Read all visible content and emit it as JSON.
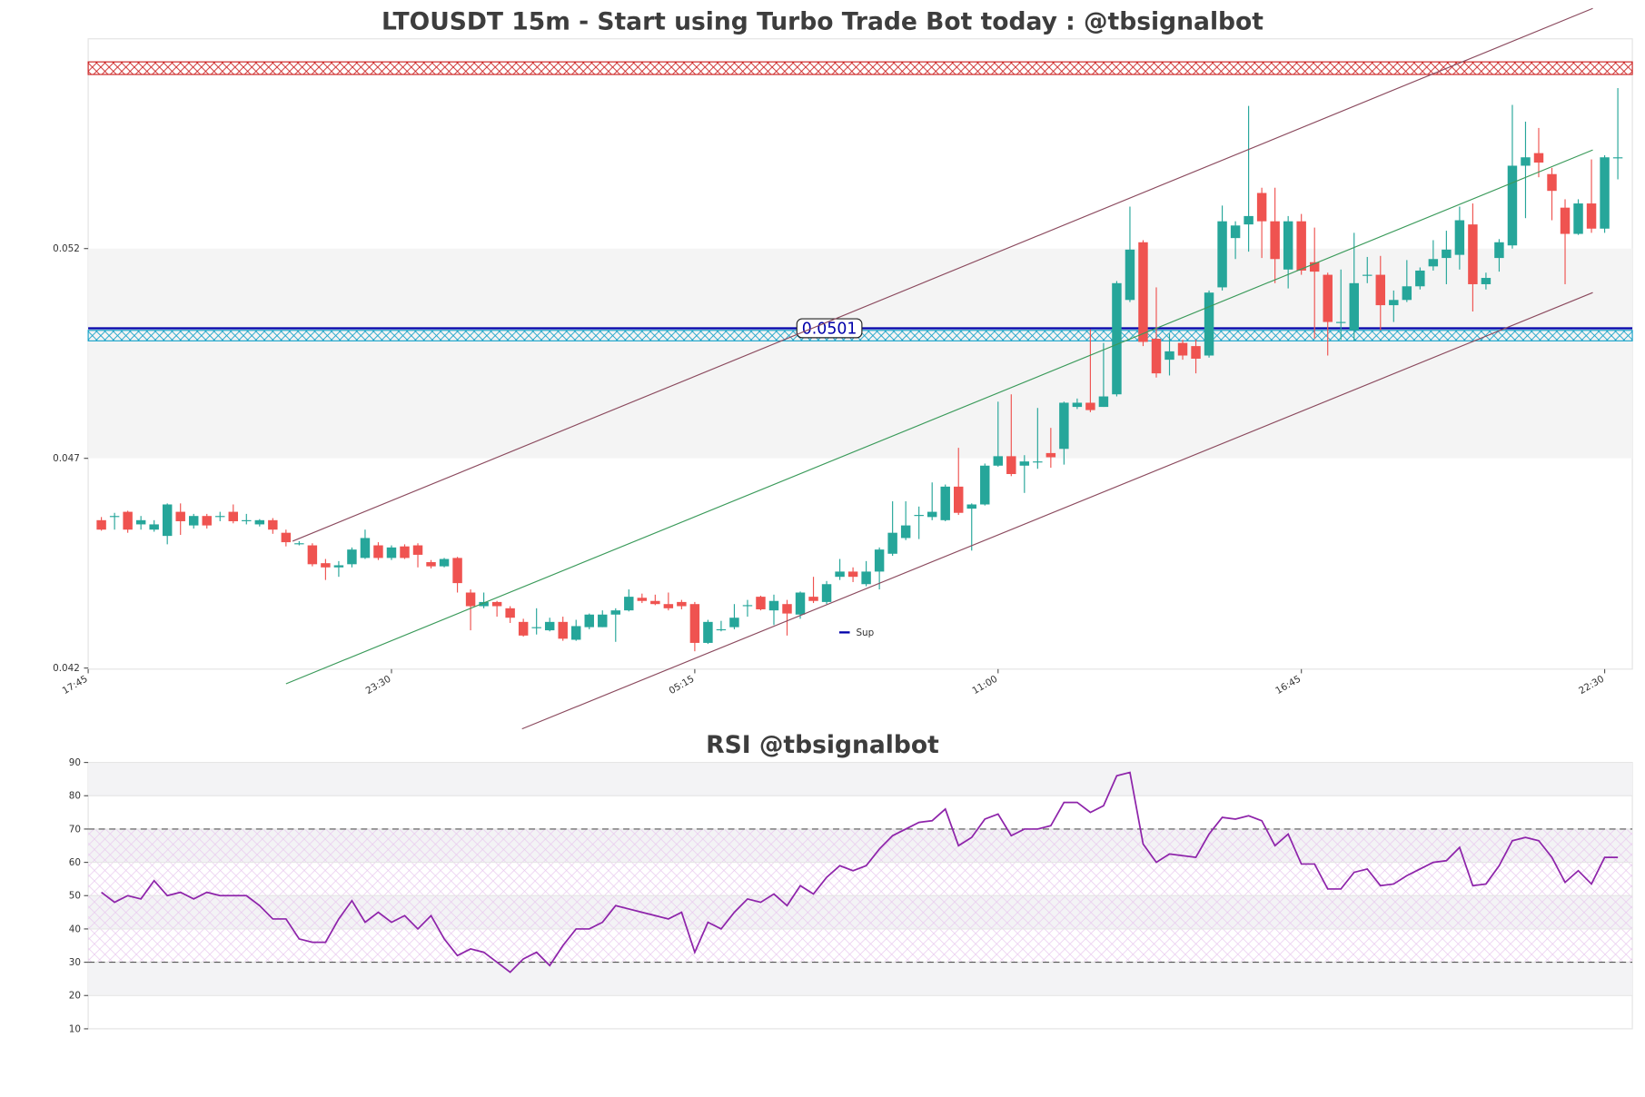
{
  "chart_data": [
    {
      "type": "candlestick",
      "title": "LTOUSDT 15m - Start using Turbo Trade Bot today : @tbsignalbot",
      "x": [
        1,
        2,
        3,
        4,
        5,
        6,
        7,
        8,
        9,
        10,
        11,
        12,
        13,
        14,
        15,
        16,
        17,
        18,
        19,
        20,
        21,
        22,
        23,
        24,
        25,
        26,
        27,
        28,
        29,
        30,
        31,
        32,
        33,
        34,
        35,
        36,
        37,
        38,
        39,
        40,
        41,
        42,
        43,
        44,
        45,
        46,
        47,
        48,
        49,
        50,
        51,
        52,
        53,
        54,
        55,
        56,
        57,
        58,
        59,
        60,
        61,
        62,
        63,
        64,
        65,
        66,
        67,
        68,
        69,
        70,
        71,
        72,
        73,
        74,
        75,
        76,
        77,
        78,
        79,
        80,
        81,
        82,
        83,
        84,
        85,
        86,
        87,
        88,
        89,
        90,
        91,
        92,
        93,
        94,
        95,
        96,
        97,
        98,
        99,
        100,
        101,
        102,
        103,
        104,
        105,
        106,
        107,
        108,
        109,
        110,
        111,
        112,
        113,
        114,
        115,
        116
      ],
      "open": [
        0.045525,
        0.0456,
        0.045725,
        0.045425,
        0.0453,
        0.04515,
        0.045725,
        0.0454,
        0.045625,
        0.045625,
        0.045725,
        0.045525,
        0.045425,
        0.045525,
        0.045225,
        0.044975,
        0.044925,
        0.0445,
        0.0444,
        0.044475,
        0.044625,
        0.044925,
        0.044625,
        0.0449,
        0.044925,
        0.044525,
        0.044425,
        0.044625,
        0.0438,
        0.043475,
        0.043575,
        0.043425,
        0.0431,
        0.042975,
        0.0429,
        0.0431,
        0.042675,
        0.042975,
        0.042975,
        0.043275,
        0.043375,
        0.043675,
        0.0436,
        0.043525,
        0.043575,
        0.043525,
        0.0426,
        0.0429,
        0.042975,
        0.0435,
        0.0437,
        0.043375,
        0.043525,
        0.043275,
        0.0437,
        0.043575,
        0.044175,
        0.0443,
        0.044,
        0.0443,
        0.044725,
        0.0451,
        0.04565,
        0.0456,
        0.045525,
        0.046325,
        0.0458,
        0.0459,
        0.046825,
        0.04705,
        0.046825,
        0.046925,
        0.047125,
        0.047225,
        0.048225,
        0.048325,
        0.048225,
        0.048525,
        0.050775,
        0.05215,
        0.04985,
        0.04935,
        0.04975,
        0.049675,
        0.04945,
        0.051075,
        0.05225,
        0.052575,
        0.053325,
        0.05265,
        0.0515,
        0.05265,
        0.051675,
        0.051375,
        0.05025,
        0.05005,
        0.051375,
        0.051375,
        0.05065,
        0.050775,
        0.0511,
        0.051575,
        0.051775,
        0.05185,
        0.052575,
        0.05115,
        0.051775,
        0.052075,
        0.053975,
        0.054275,
        0.053775,
        0.052975,
        0.05235,
        0.053075,
        0.052475,
        0.054175
      ],
      "high": [
        0.0456,
        0.0457,
        0.04575,
        0.045625,
        0.045525,
        0.045925,
        0.045925,
        0.045675,
        0.045675,
        0.045725,
        0.0459,
        0.045675,
        0.04555,
        0.045575,
        0.0453,
        0.045025,
        0.044975,
        0.0446,
        0.04455,
        0.044875,
        0.0453,
        0.045,
        0.044925,
        0.04495,
        0.044975,
        0.044575,
        0.044625,
        0.04465,
        0.043875,
        0.0438,
        0.0436,
        0.043475,
        0.043175,
        0.043425,
        0.0432,
        0.043225,
        0.04315,
        0.0433,
        0.043375,
        0.043425,
        0.043875,
        0.043775,
        0.04375,
        0.0438,
        0.043625,
        0.043575,
        0.04315,
        0.043125,
        0.043525,
        0.043625,
        0.043725,
        0.04375,
        0.043625,
        0.043825,
        0.044175,
        0.044075,
        0.0446,
        0.0444,
        0.04455,
        0.044875,
        0.045975,
        0.045975,
        0.04585,
        0.046425,
        0.046375,
        0.04725,
        0.045925,
        0.046875,
        0.04835,
        0.048525,
        0.047075,
        0.0482,
        0.047725,
        0.04835,
        0.048425,
        0.050075,
        0.04975,
        0.051225,
        0.053,
        0.0522,
        0.051075,
        0.049975,
        0.049825,
        0.049825,
        0.051,
        0.053025,
        0.05265,
        0.0554,
        0.05345,
        0.05345,
        0.052775,
        0.052825,
        0.0525,
        0.051425,
        0.0515,
        0.052375,
        0.0518,
        0.051825,
        0.051,
        0.051725,
        0.05155,
        0.0522,
        0.052425,
        0.053,
        0.053075,
        0.051425,
        0.052225,
        0.055425,
        0.055025,
        0.054875,
        0.053925,
        0.053175,
        0.053175,
        0.054125,
        0.054225,
        0.055825
      ],
      "low": [
        0.045275,
        0.0453,
        0.045225,
        0.0453,
        0.04525,
        0.04495,
        0.045175,
        0.045325,
        0.045325,
        0.0455,
        0.04545,
        0.045425,
        0.045375,
        0.0452,
        0.0449,
        0.044925,
        0.044425,
        0.0441,
        0.044175,
        0.0444,
        0.0446,
        0.044575,
        0.044575,
        0.0446,
        0.0444,
        0.044375,
        0.0444,
        0.0438,
        0.0429,
        0.043425,
        0.043225,
        0.043075,
        0.04275,
        0.0428,
        0.042875,
        0.04265,
        0.04265,
        0.042925,
        0.042975,
        0.042625,
        0.04335,
        0.04355,
        0.0435,
        0.043375,
        0.0434,
        0.0424,
        0.042575,
        0.042875,
        0.042925,
        0.043225,
        0.043375,
        0.043025,
        0.042775,
        0.043175,
        0.04355,
        0.043525,
        0.0441,
        0.04405,
        0.04395,
        0.043875,
        0.044675,
        0.04505,
        0.045075,
        0.045525,
        0.0455,
        0.04565,
        0.0448,
        0.045875,
        0.0468,
        0.046575,
        0.046175,
        0.04675,
        0.046775,
        0.04685,
        0.048175,
        0.0481,
        0.048225,
        0.048475,
        0.050725,
        0.049675,
        0.048925,
        0.048975,
        0.04935,
        0.049025,
        0.0494,
        0.051,
        0.05175,
        0.051925,
        0.051775,
        0.051175,
        0.05105,
        0.051375,
        0.04985,
        0.04945,
        0.049825,
        0.0498,
        0.051175,
        0.05005,
        0.05025,
        0.050725,
        0.051025,
        0.051475,
        0.05115,
        0.0515,
        0.0505,
        0.051025,
        0.05145,
        0.052,
        0.052725,
        0.0537,
        0.052675,
        0.05115,
        0.052325,
        0.052375,
        0.052375,
        0.05365
      ],
      "close": [
        0.0453,
        0.045625,
        0.0453,
        0.045525,
        0.045425,
        0.0459,
        0.0455,
        0.045625,
        0.0454,
        0.045625,
        0.0455,
        0.045525,
        0.045525,
        0.0453,
        0.045,
        0.044975,
        0.044475,
        0.0444,
        0.04445,
        0.044825,
        0.0451,
        0.044625,
        0.044875,
        0.044625,
        0.0447,
        0.044425,
        0.0446,
        0.044025,
        0.043475,
        0.043575,
        0.043475,
        0.0432,
        0.042775,
        0.042975,
        0.0431,
        0.0427,
        0.043,
        0.043275,
        0.043275,
        0.043375,
        0.0437,
        0.0436,
        0.043525,
        0.043425,
        0.043475,
        0.0426,
        0.0431,
        0.042925,
        0.0432,
        0.0435,
        0.0434,
        0.0436,
        0.0433,
        0.0438,
        0.0436,
        0.044,
        0.0443,
        0.044175,
        0.0443,
        0.044825,
        0.045225,
        0.0454,
        0.04565,
        0.045725,
        0.046325,
        0.0457,
        0.0459,
        0.046825,
        0.04705,
        0.046625,
        0.046925,
        0.046925,
        0.047025,
        0.048325,
        0.048325,
        0.04815,
        0.048475,
        0.051175,
        0.051975,
        0.049775,
        0.049025,
        0.04955,
        0.04945,
        0.049375,
        0.05095,
        0.05265,
        0.05255,
        0.052775,
        0.05265,
        0.05175,
        0.05265,
        0.051475,
        0.05145,
        0.05025,
        0.05025,
        0.051175,
        0.051375,
        0.05065,
        0.050775,
        0.0511,
        0.051475,
        0.05175,
        0.051975,
        0.052675,
        0.05115,
        0.0513,
        0.05215,
        0.053975,
        0.054175,
        0.05405,
        0.053375,
        0.05235,
        0.053075,
        0.052475,
        0.054175,
        0.054175
      ],
      "up_color": "#26a69a",
      "down_color": "#ef5350",
      "xlim": [
        0,
        117.1
      ],
      "xticks": [
        {
          "value": 0,
          "label": "17:45"
        },
        {
          "value": 23,
          "label": "23:30"
        },
        {
          "value": 46,
          "label": "05:15"
        },
        {
          "value": 69,
          "label": "11:00"
        },
        {
          "value": 92,
          "label": "16:45"
        },
        {
          "value": 115,
          "label": "22:30"
        }
      ],
      "ylim": [
        0.042,
        0.057
      ],
      "yticks": [
        0.042,
        0.047,
        0.052
      ],
      "band": [
        0.047,
        0.052
      ],
      "zones": [
        {
          "range": [
            0.05615,
            0.05645
          ],
          "color": "#cc2222"
        },
        {
          "range": [
            0.0498,
            0.05005
          ],
          "color": "#17a2c8"
        }
      ],
      "level": {
        "name": "Sup",
        "value": 0.0501,
        "color": "#0000aa"
      },
      "lines": [
        {
          "x": [
            15.5,
            114.1
          ],
          "y": [
            0.045025,
            0.057725
          ],
          "color": "#8b4a5e"
        },
        {
          "x": [
            32.9,
            114.1
          ],
          "y": [
            0.04055,
            0.05095
          ],
          "color": "#8b4a5e"
        },
        {
          "x": [
            15.0,
            114.1
          ],
          "y": [
            0.041625,
            0.05435
          ],
          "color": "#3a9a5a"
        }
      ],
      "legend": "lower center"
    },
    {
      "type": "line",
      "title": "RSI @tbsignalbot",
      "x": [
        1,
        2,
        3,
        4,
        5,
        6,
        7,
        8,
        9,
        10,
        11,
        12,
        13,
        14,
        15,
        16,
        17,
        18,
        19,
        20,
        21,
        22,
        23,
        24,
        25,
        26,
        27,
        28,
        29,
        30,
        31,
        32,
        33,
        34,
        35,
        36,
        37,
        38,
        39,
        40,
        41,
        42,
        43,
        44,
        45,
        46,
        47,
        48,
        49,
        50,
        51,
        52,
        53,
        54,
        55,
        56,
        57,
        58,
        59,
        60,
        61,
        62,
        63,
        64,
        65,
        66,
        67,
        68,
        69,
        70,
        71,
        72,
        73,
        74,
        75,
        76,
        77,
        78,
        79,
        80,
        81,
        82,
        83,
        84,
        85,
        86,
        87,
        88,
        89,
        90,
        91,
        92,
        93,
        94,
        95,
        96,
        97,
        98,
        99,
        100,
        101,
        102,
        103,
        104,
        105,
        106,
        107,
        108,
        109,
        110,
        111,
        112,
        113,
        114,
        115,
        116
      ],
      "series": [
        {
          "color": "#8e24aa",
          "values": [
            51,
            48,
            50,
            49,
            54.5,
            50,
            51,
            49,
            51,
            50,
            50,
            50,
            47,
            43,
            43,
            37,
            36,
            36,
            43,
            48.5,
            42,
            45,
            42,
            44,
            40,
            44,
            37,
            32,
            34,
            33,
            30,
            27,
            31,
            33,
            29,
            35,
            40,
            40,
            42,
            47,
            46,
            45,
            44,
            43,
            45,
            33,
            42,
            40,
            45,
            49,
            48,
            50.5,
            47,
            53,
            50.5,
            55.5,
            59,
            57.5,
            59,
            64,
            68,
            70,
            72,
            72.5,
            76,
            65,
            67.5,
            73,
            74.5,
            68,
            70,
            70,
            71,
            78,
            78,
            75,
            77,
            86,
            87,
            65.5,
            60,
            62.5,
            62,
            61.5,
            68.5,
            73.5,
            73,
            74,
            72.5,
            65,
            68.5,
            59.5,
            59.5,
            52,
            52,
            57,
            58,
            53,
            53.5,
            56,
            58,
            60,
            60.5,
            64.5,
            53,
            53.5,
            59,
            66.5,
            67.5,
            66.5,
            61.5,
            54,
            57.5,
            53.5,
            61.5,
            61.5
          ]
        }
      ],
      "xlim": [
        0,
        117.1
      ],
      "ylim": [
        10,
        90
      ],
      "yticks": [
        10,
        20,
        30,
        40,
        50,
        60,
        70,
        80,
        90
      ],
      "hlines": [
        30,
        70
      ],
      "bands": [
        [
          20,
          30
        ],
        [
          40,
          50
        ],
        [
          60,
          70
        ],
        [
          80,
          90
        ]
      ],
      "hatch": [
        30,
        70
      ],
      "grid": true
    }
  ]
}
